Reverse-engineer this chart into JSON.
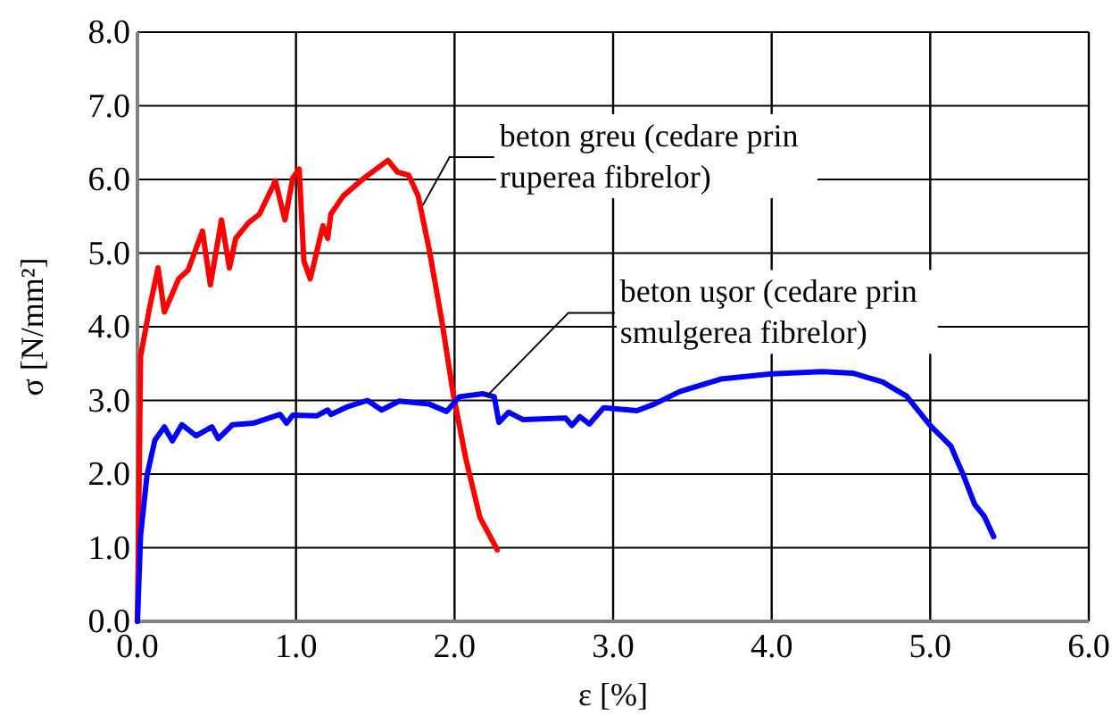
{
  "chart_data": {
    "type": "line",
    "xlabel": "ε [%]",
    "ylabel": "σ [N/mm²]",
    "xlim": [
      0,
      6
    ],
    "ylim": [
      0,
      8
    ],
    "xticks": [
      {
        "value": 0,
        "label": "0.0"
      },
      {
        "value": 1,
        "label": "1.0"
      },
      {
        "value": 2,
        "label": "2.0"
      },
      {
        "value": 3,
        "label": "3.0"
      },
      {
        "value": 4,
        "label": "4.0"
      },
      {
        "value": 5,
        "label": "5.0"
      },
      {
        "value": 6,
        "label": "6.0"
      }
    ],
    "yticks": [
      {
        "value": 0,
        "label": "0.0"
      },
      {
        "value": 1,
        "label": "1.0"
      },
      {
        "value": 2,
        "label": "2.0"
      },
      {
        "value": 3,
        "label": "3.0"
      },
      {
        "value": 4,
        "label": "4.0"
      },
      {
        "value": 5,
        "label": "5.0"
      },
      {
        "value": 6,
        "label": "6.0"
      },
      {
        "value": 7,
        "label": "7.0"
      },
      {
        "value": 8,
        "label": "8.0"
      }
    ],
    "grid": true,
    "marker": "none",
    "line_style": "solid",
    "series": [
      {
        "color": "#ff0000",
        "x": [
          0,
          0.02,
          0.075,
          0.13,
          0.17,
          0.26,
          0.32,
          0.41,
          0.46,
          0.53,
          0.58,
          0.62,
          0.7,
          0.77,
          0.87,
          0.93,
          0.98,
          1.02,
          1.05,
          1.09,
          1.17,
          1.2,
          1.22,
          1.3,
          1.43,
          1.58,
          1.64,
          1.71,
          1.77,
          1.84,
          1.92,
          1.99,
          2.07,
          2.16,
          2.27
        ],
        "values": [
          0,
          3.6,
          4.24,
          4.8,
          4.2,
          4.65,
          4.77,
          5.3,
          4.57,
          5.45,
          4.8,
          5.2,
          5.41,
          5.53,
          5.98,
          5.45,
          6.02,
          6.14,
          4.89,
          4.65,
          5.37,
          5.2,
          5.53,
          5.78,
          6.02,
          6.26,
          6.1,
          6.06,
          5.78,
          5.05,
          4.08,
          3.11,
          2.22,
          1.41,
          0.97
        ]
      },
      {
        "color": "#0000ff",
        "x": [
          0,
          0.02,
          0.06,
          0.11,
          0.17,
          0.22,
          0.28,
          0.37,
          0.47,
          0.51,
          0.6,
          0.73,
          0.9,
          0.94,
          0.98,
          1.13,
          1.2,
          1.22,
          1.32,
          1.45,
          1.54,
          1.65,
          1.84,
          1.95,
          2.03,
          2.18,
          2.25,
          2.28,
          2.34,
          2.43,
          2.7,
          2.74,
          2.79,
          2.85,
          2.94,
          3.15,
          3.26,
          3.42,
          3.68,
          4.0,
          4.32,
          4.51,
          4.7,
          4.85,
          5.0,
          5.13,
          5.21,
          5.28,
          5.34,
          5.4
        ],
        "values": [
          0,
          1.17,
          1.98,
          2.46,
          2.64,
          2.45,
          2.67,
          2.52,
          2.64,
          2.48,
          2.67,
          2.69,
          2.81,
          2.69,
          2.8,
          2.79,
          2.87,
          2.81,
          2.91,
          3.0,
          2.87,
          2.99,
          2.95,
          2.85,
          3.05,
          3.09,
          3.05,
          2.7,
          2.84,
          2.74,
          2.76,
          2.66,
          2.78,
          2.68,
          2.9,
          2.86,
          2.95,
          3.12,
          3.29,
          3.36,
          3.39,
          3.37,
          3.25,
          3.06,
          2.66,
          2.38,
          1.98,
          1.59,
          1.43,
          1.15
        ]
      }
    ],
    "annotations": [
      {
        "text": "beton greu (cedare prin\nruperea fibrelor)",
        "x": 1.8,
        "y": 5.65
      },
      {
        "text": "beton uşor (cedare prin\nsmulgerea fibrelor)",
        "x": 2.2,
        "y": 3.05
      }
    ]
  }
}
